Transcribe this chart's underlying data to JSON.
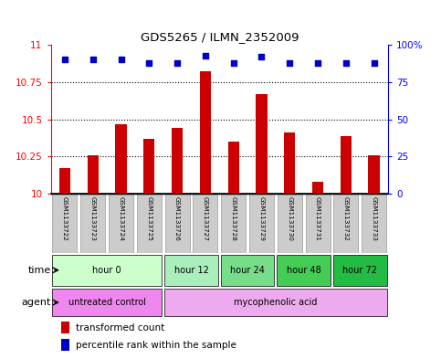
{
  "title": "GDS5265 / ILMN_2352009",
  "samples": [
    "GSM1133722",
    "GSM1133723",
    "GSM1133724",
    "GSM1133725",
    "GSM1133726",
    "GSM1133727",
    "GSM1133728",
    "GSM1133729",
    "GSM1133730",
    "GSM1133731",
    "GSM1133732",
    "GSM1133733"
  ],
  "bar_values": [
    10.17,
    10.26,
    10.47,
    10.37,
    10.44,
    10.82,
    10.35,
    10.67,
    10.41,
    10.08,
    10.39,
    10.26
  ],
  "percentile_values": [
    10.9,
    10.9,
    10.9,
    10.88,
    10.88,
    10.93,
    10.88,
    10.92,
    10.88,
    10.88,
    10.88,
    10.88
  ],
  "bar_color": "#cc0000",
  "percentile_color": "#0000cc",
  "ylim": [
    10.0,
    11.0
  ],
  "yticks": [
    10.0,
    10.25,
    10.5,
    10.75,
    11.0
  ],
  "ytick_labels": [
    "10",
    "10.25",
    "10.5",
    "10.75",
    "11"
  ],
  "right_yticks": [
    0,
    25,
    50,
    75,
    100
  ],
  "right_ytick_labels": [
    "0",
    "25",
    "50",
    "75",
    "100%"
  ],
  "dotted_lines": [
    10.25,
    10.5,
    10.75
  ],
  "time_groups": [
    {
      "label": "hour 0",
      "start": 0,
      "end": 3,
      "color": "#ccffcc"
    },
    {
      "label": "hour 12",
      "start": 4,
      "end": 5,
      "color": "#aaeebb"
    },
    {
      "label": "hour 24",
      "start": 6,
      "end": 7,
      "color": "#77dd88"
    },
    {
      "label": "hour 48",
      "start": 8,
      "end": 9,
      "color": "#44cc55"
    },
    {
      "label": "hour 72",
      "start": 10,
      "end": 11,
      "color": "#22bb44"
    }
  ],
  "agent_groups": [
    {
      "label": "untreated control",
      "start": 0,
      "end": 3,
      "color": "#ee88ee"
    },
    {
      "label": "mycophenolic acid",
      "start": 4,
      "end": 11,
      "color": "#eeaaee"
    }
  ],
  "legend_bar_label": "transformed count",
  "legend_pct_label": "percentile rank within the sample",
  "time_label": "time",
  "agent_label": "agent",
  "sample_box_color": "#cccccc",
  "sample_box_edge": "#999999"
}
